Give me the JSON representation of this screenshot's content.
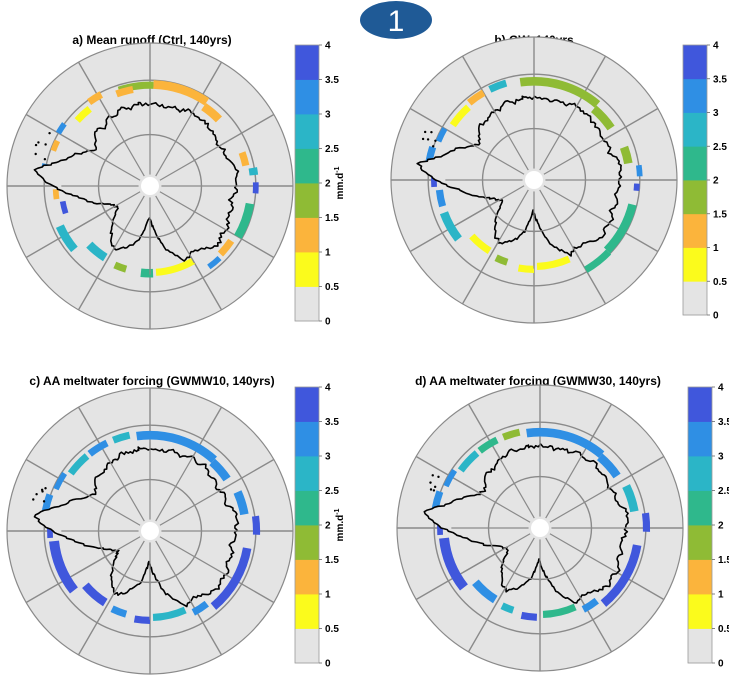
{
  "badge": {
    "label": "1",
    "color": "#1f5a96"
  },
  "colorbar": {
    "unit_base": "mm.d",
    "unit_exp": "-1",
    "ticks": [
      "0",
      "0.5",
      "1",
      "1.5",
      "2",
      "2.5",
      "3",
      "3.5",
      "4"
    ],
    "colors": [
      "#e4e4e4",
      "#fbfb1c",
      "#fbb43c",
      "#8fbb35",
      "#2fb88c",
      "#2bb5c7",
      "#2f8fe4",
      "#4057dc"
    ]
  },
  "map_style": {
    "ocean": "#e4e4e4",
    "grid": "#8a8a8a",
    "coast": "#000000"
  },
  "panels": [
    {
      "id": "a",
      "title": "a) Mean runoff (Ctrl, 140yrs)",
      "show_unit": true
    },
    {
      "id": "b",
      "title": "b) GW, 140yrs",
      "show_unit": false
    },
    {
      "id": "c",
      "title": "c) AA meltwater forcing (GWMW10, 140yrs)",
      "show_unit": true
    },
    {
      "id": "d",
      "title": "d) AA meltwater forcing (GWMW30, 140yrs)",
      "show_unit": false
    }
  ]
}
